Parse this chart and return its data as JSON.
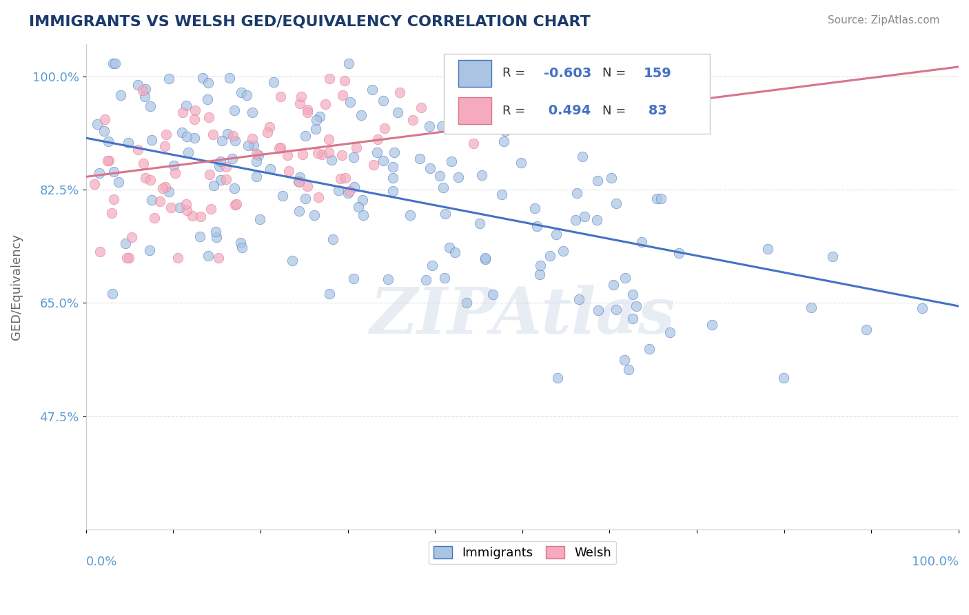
{
  "title": "IMMIGRANTS VS WELSH GED/EQUIVALENCY CORRELATION CHART",
  "source_text": "Source: ZipAtlas.com",
  "ylabel": "GED/Equivalency",
  "xlim": [
    0.0,
    1.0
  ],
  "ylim": [
    0.3,
    1.05
  ],
  "blue_R": -0.603,
  "blue_N": 159,
  "pink_R": 0.494,
  "pink_N": 83,
  "blue_color": "#aac4e2",
  "pink_color": "#f5aabf",
  "blue_line_color": "#4472c4",
  "pink_line_color": "#d9748a",
  "legend_blue_label": "Immigrants",
  "legend_pink_label": "Welsh",
  "watermark": "ZIPAtlas",
  "background_color": "#ffffff",
  "grid_color": "#dddddd",
  "title_color": "#1a3a6b",
  "axis_label_color": "#5b9bd5",
  "ytick_positions": [
    0.475,
    0.65,
    0.825,
    1.0
  ],
  "ytick_labels": [
    "47.5%",
    "65.0%",
    "82.5%",
    "100.0%"
  ],
  "blue_trend_x0": 0.0,
  "blue_trend_x1": 1.0,
  "blue_trend_y0": 0.905,
  "blue_trend_y1": 0.645,
  "pink_trend_x0": 0.0,
  "pink_trend_x1": 1.0,
  "pink_trend_y0": 0.845,
  "pink_trend_y1": 1.015
}
